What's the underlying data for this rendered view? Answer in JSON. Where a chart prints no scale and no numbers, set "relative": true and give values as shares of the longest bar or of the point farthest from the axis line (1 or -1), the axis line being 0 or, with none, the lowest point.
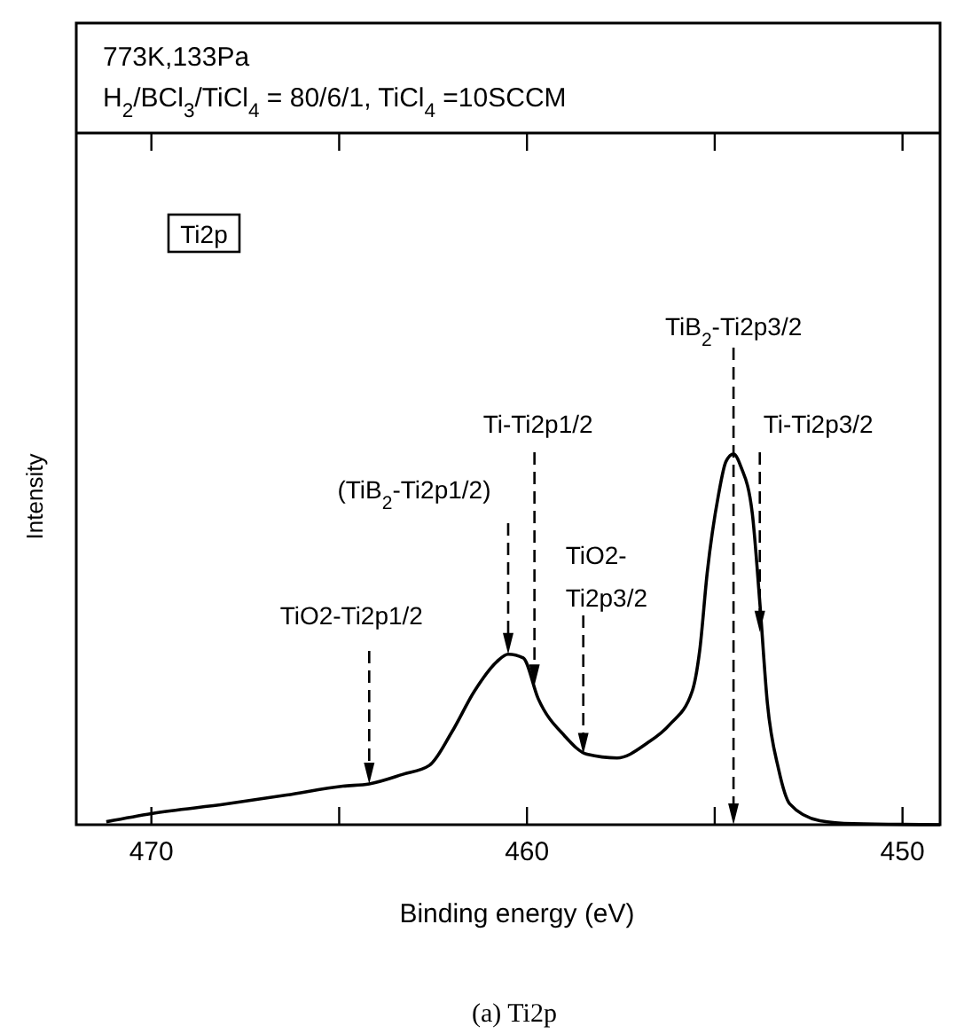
{
  "chart_data": {
    "type": "line",
    "title": "773K,133Pa",
    "subtitle": "H$_{2}$/BCl$_{3}$/TiCl$_{4}$ = 80/6/1, TiCl$_{4}$ =10SCCM",
    "xlabel": "Binding energy (eV)",
    "ylabel": "Intensity",
    "relative": true,
    "xlim": [
      472,
      449
    ],
    "xticks": [
      470,
      {
        "value": 465,
        "label": null
      },
      460,
      {
        "value": 455,
        "label": null
      },
      450
    ],
    "x": [
      471.2,
      470,
      468,
      466.4,
      464.9,
      464.2,
      463.3,
      462.6,
      462,
      461.4,
      460.8,
      460.5,
      460.1,
      459.7,
      459,
      458.4,
      457.6,
      456.8,
      456.2,
      455.6,
      455.4,
      455.2,
      454.9,
      454.7,
      454.5,
      454.3,
      454,
      453.8,
      453.6,
      453.3,
      453,
      452.2,
      451.3,
      449
    ],
    "series": [
      {
        "color": "#000000",
        "values": [
          0.008,
          0.03,
          0.056,
          0.08,
          0.104,
          0.11,
          0.136,
          0.16,
          0.25,
          0.36,
          0.44,
          0.46,
          0.45,
          0.34,
          0.24,
          0.19,
          0.18,
          0.22,
          0.27,
          0.36,
          0.47,
          0.68,
          0.89,
          0.98,
          1,
          0.965,
          0.84,
          0.6,
          0.33,
          0.15,
          0.056,
          0.011,
          0.003,
          0
        ]
      }
    ],
    "marker": "none",
    "line_style": "solid",
    "ref_lines": [
      {
        "axis": "x",
        "value": 454.5,
        "label": "TiB$_{2}$-Ti2p3/2",
        "line_style": "dashed",
        "color": "#000000"
      }
    ],
    "annotations": [
      {
        "text": "TiO2-Ti2p1/2",
        "x": 464.2,
        "y": 0.11
      },
      {
        "text": "(TiB$_{2}$-Ti2p1/2)",
        "x": 460.5,
        "y": 0.46
      },
      {
        "text": "Ti-Ti2p1/2",
        "x": 459.8,
        "y": 0.375
      },
      {
        "text": "TiO2-Ti2p3/2",
        "x": 458.5,
        "y": 0.19
      },
      {
        "text": "Ti-Ti2p3/2",
        "x": 453.8,
        "y": 0.52
      },
      "Ti2p",
      "(a) Ti2p"
    ]
  }
}
